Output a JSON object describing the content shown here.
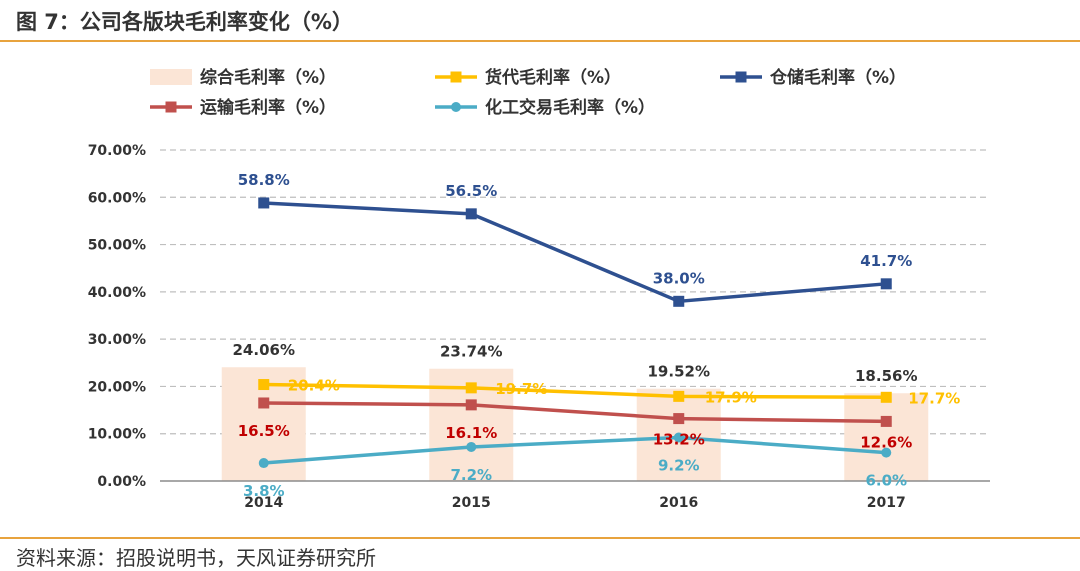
{
  "header": {
    "title": "图 7：公司各版块毛利率变化（%）"
  },
  "footer": {
    "source": "资料来源：招股说明书，天风证券研究所"
  },
  "colors": {
    "rule": "#e8a33d",
    "bar": "#fbe5d6",
    "grid": "#bfbfbf",
    "text": "#333333"
  },
  "chart_data": {
    "type": "bar+line",
    "title": "图 7：公司各版块毛利率变化（%）",
    "categories": [
      "2014",
      "2015",
      "2016",
      "2017"
    ],
    "y_axis": {
      "min": 0,
      "max": 70,
      "step": 10,
      "tick_labels": [
        "0.00%",
        "10.00%",
        "20.00%",
        "30.00%",
        "40.00%",
        "50.00%",
        "60.00%",
        "70.00%"
      ],
      "grid": "dashed"
    },
    "legend_position": "top",
    "bar_series": {
      "name": "综合毛利率（%）",
      "color": "#fbe5d6",
      "values": [
        24.06,
        23.74,
        19.52,
        18.56
      ],
      "labels": [
        "24.06%",
        "23.74%",
        "19.52%",
        "18.56%"
      ]
    },
    "line_series": [
      {
        "name": "货代毛利率（%）",
        "color": "#ffc000",
        "marker": "square",
        "values": [
          20.4,
          19.7,
          17.9,
          17.7
        ],
        "labels": [
          "20.4%",
          "19.7%",
          "17.9%",
          "17.7%"
        ]
      },
      {
        "name": "仓储毛利率（%）",
        "color": "#2e5090",
        "marker": "square",
        "values": [
          58.8,
          56.5,
          38.0,
          41.7
        ],
        "labels": [
          "58.8%",
          "56.5%",
          "38.0%",
          "41.7%"
        ]
      },
      {
        "name": "运输毛利率（%）",
        "color": "#c0504d",
        "marker": "square",
        "label_color": "#c00000",
        "values": [
          16.5,
          16.1,
          13.2,
          12.6
        ],
        "labels": [
          "16.5%",
          "16.1%",
          "13.2%",
          "12.6%"
        ]
      },
      {
        "name": "化工交易毛利率（%）",
        "color": "#4bacc6",
        "marker": "circle",
        "values": [
          3.8,
          7.2,
          9.2,
          6.0
        ],
        "labels": [
          "3.8%",
          "7.2%",
          "9.2%",
          "6.0%"
        ]
      }
    ]
  }
}
